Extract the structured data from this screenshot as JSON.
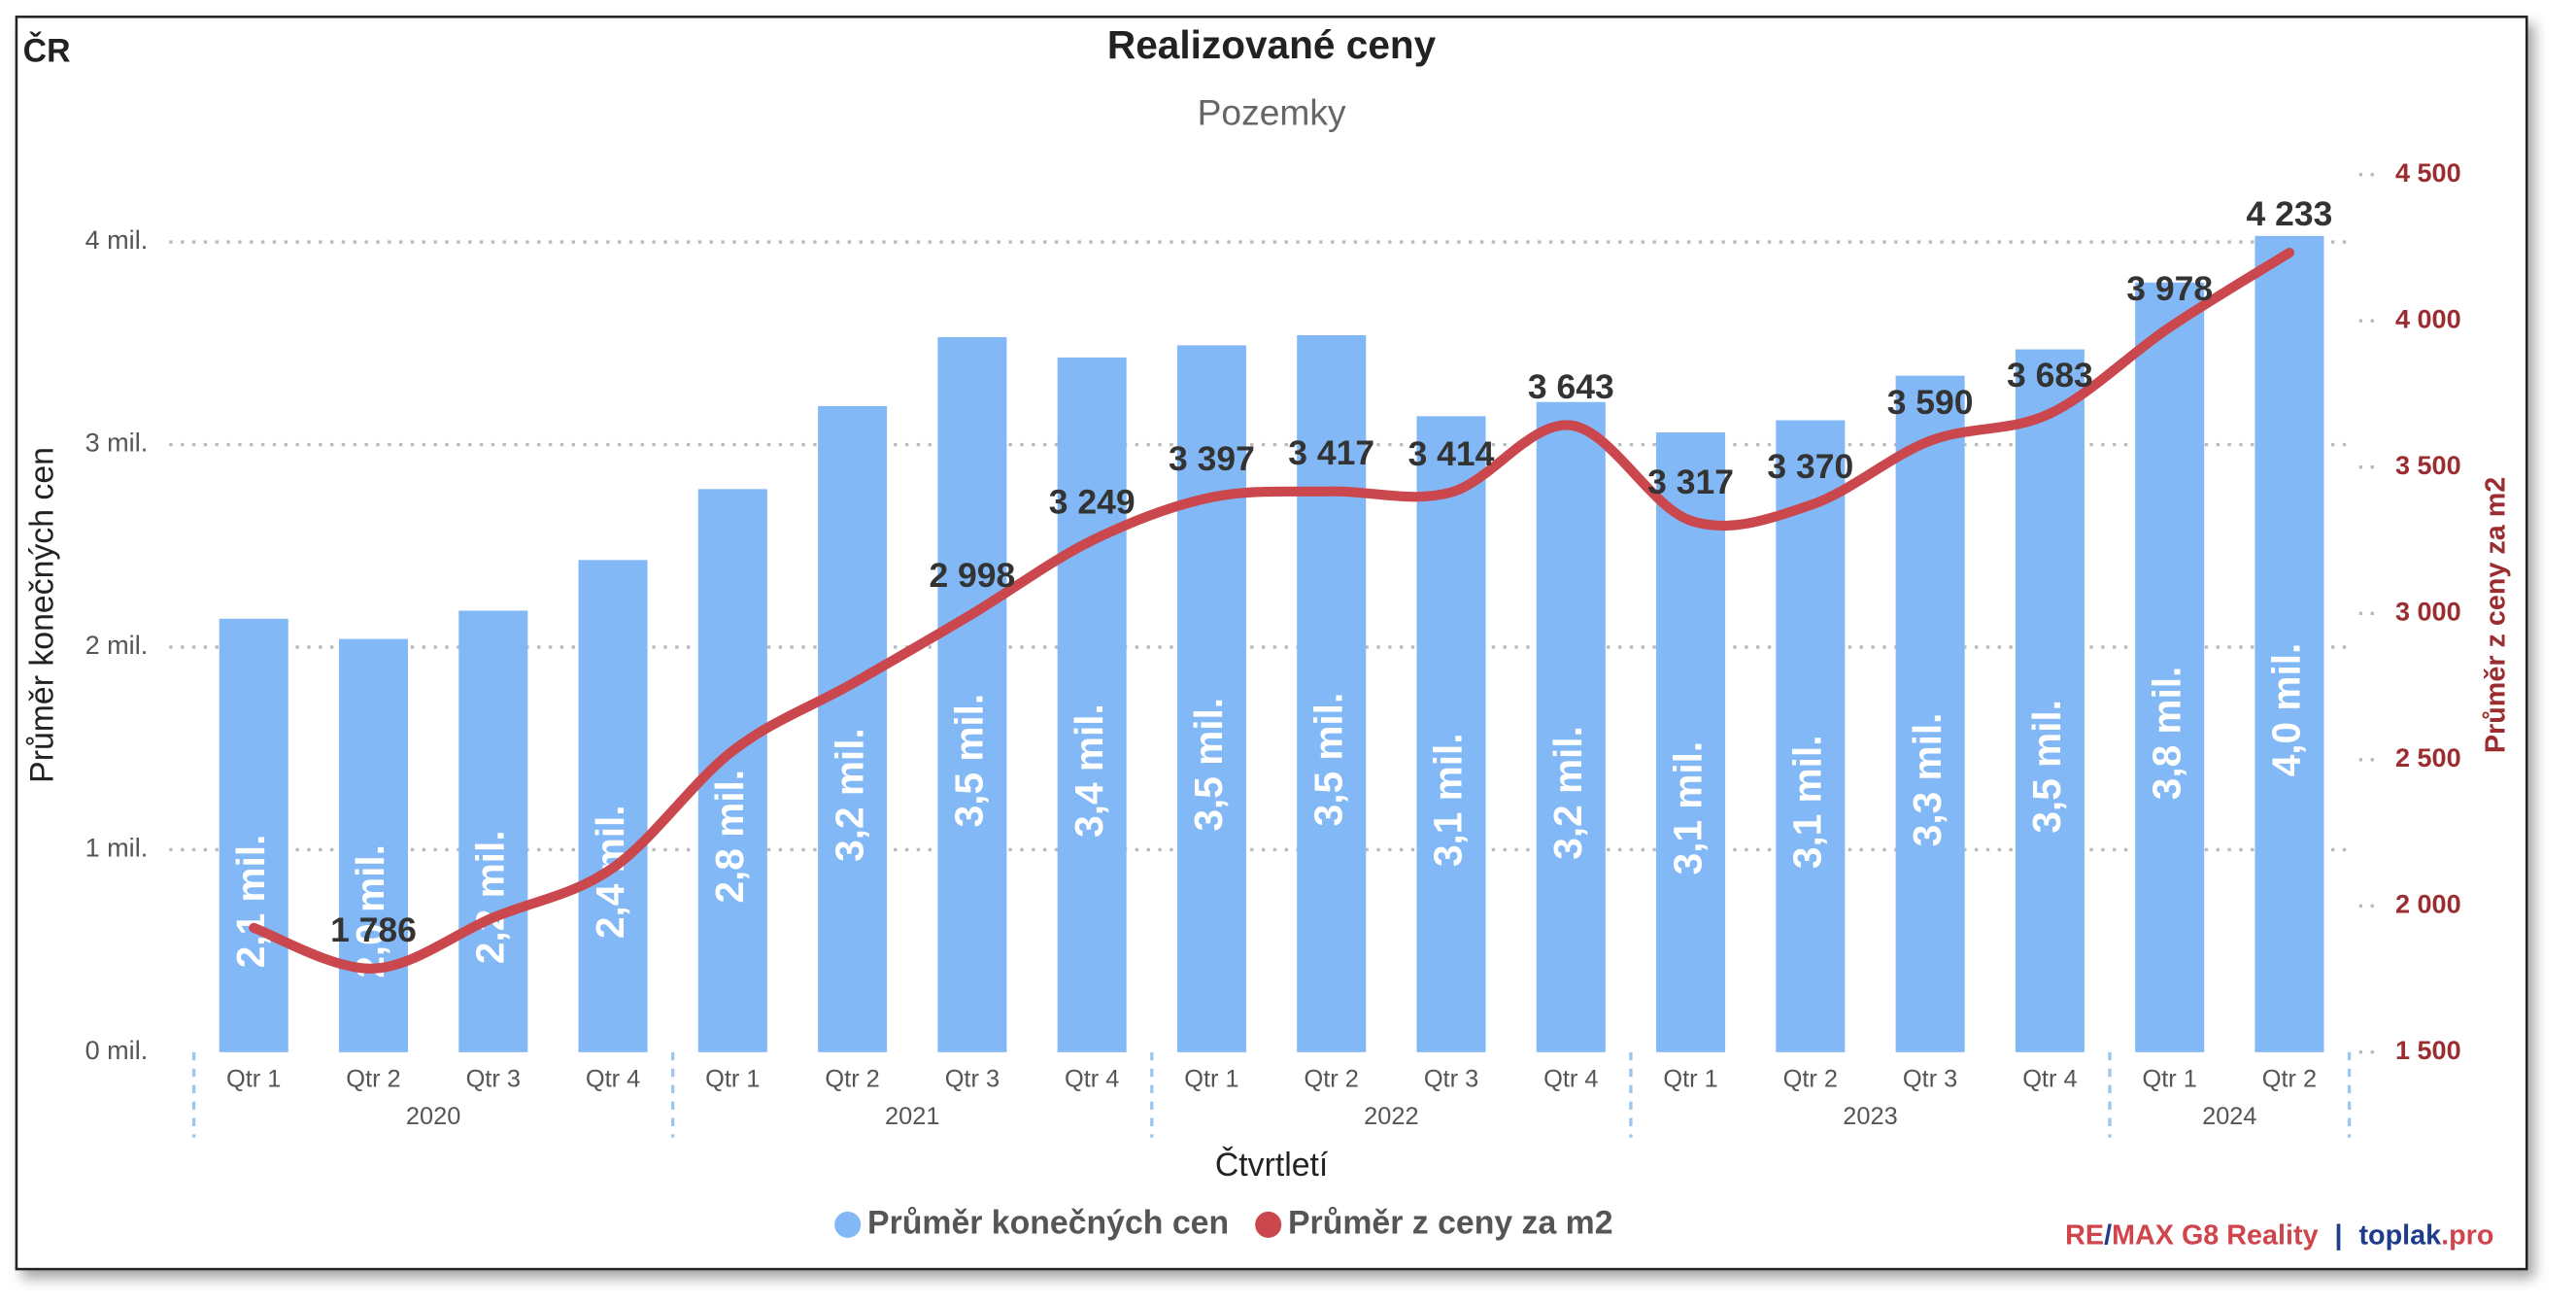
{
  "chart_data": {
    "type": "bar-line",
    "corner_label": "ČR",
    "title": "Realizované ceny",
    "subtitle": "Pozemky",
    "xlabel": "Čtvrtletí",
    "ylabel": "Průměr konečných cen",
    "y2label": "Průměr z ceny za m2",
    "categories": [
      "Qtr 1",
      "Qtr 2",
      "Qtr 3",
      "Qtr 4",
      "Qtr 1",
      "Qtr 2",
      "Qtr 3",
      "Qtr 4",
      "Qtr 1",
      "Qtr 2",
      "Qtr 3",
      "Qtr 4",
      "Qtr 1",
      "Qtr 2",
      "Qtr 3",
      "Qtr 4",
      "Qtr 1",
      "Qtr 2"
    ],
    "years": [
      "2020",
      "2021",
      "2022",
      "2023",
      "2024"
    ],
    "series": [
      {
        "name": "Průměr konečných cen",
        "type": "bar",
        "color": "#82b8f5",
        "values": [
          2.14,
          2.04,
          2.18,
          2.43,
          2.78,
          3.19,
          3.53,
          3.43,
          3.49,
          3.54,
          3.14,
          3.21,
          3.06,
          3.12,
          3.34,
          3.47,
          3.8,
          4.03
        ],
        "value_labels": [
          "2,1 mil.",
          "2,0 mil.",
          "2,2 mil.",
          "2,4 mil.",
          "2,8 mil.",
          "3,2 mil.",
          "3,5 mil.",
          "3,4 mil.",
          "3,5 mil.",
          "3,5 mil.",
          "3,1 mil.",
          "3,2 mil.",
          "3,1 mil.",
          "3,1 mil.",
          "3,3 mil.",
          "3,5 mil.",
          "3,8 mil.",
          "4,0 mil."
        ]
      },
      {
        "name": "Průměr z ceny za m2",
        "type": "line",
        "axis": "y2",
        "color": "#c9474d",
        "values": [
          1925,
          1786,
          1960,
          2130,
          2530,
          2760,
          2998,
          3249,
          3397,
          3417,
          3414,
          3643,
          3317,
          3370,
          3590,
          3683,
          3978,
          4233
        ],
        "value_labels": [
          null,
          "1 786",
          null,
          null,
          null,
          null,
          "2 998",
          "3 249",
          "3 397",
          "3 417",
          "3 414",
          "3 643",
          "3 317",
          "3 370",
          "3 590",
          "3 683",
          "3 978",
          "4 233"
        ]
      }
    ],
    "ylim": [
      0,
      4.333
    ],
    "yticks": [
      {
        "value": 0,
        "label": "0 mil."
      },
      {
        "value": 1,
        "label": "1 mil."
      },
      {
        "value": 2,
        "label": "2 mil."
      },
      {
        "value": 3,
        "label": "3 mil."
      },
      {
        "value": 4,
        "label": "4 mil."
      }
    ],
    "y2lim": [
      1500,
      4500
    ],
    "y2ticks": [
      {
        "value": 1500,
        "label": "1 500"
      },
      {
        "value": 2000,
        "label": "2 000"
      },
      {
        "value": 2500,
        "label": "2 500"
      },
      {
        "value": 3000,
        "label": "3 000"
      },
      {
        "value": 3500,
        "label": "3 500"
      },
      {
        "value": 4000,
        "label": "4 000"
      },
      {
        "value": 4500,
        "label": "4 500"
      }
    ],
    "y2color": "#9b2d30",
    "grid": true,
    "legend": "bottom",
    "credit": [
      {
        "text": "RE",
        "color": "#d0454b"
      },
      {
        "text": "/",
        "color": "#1f3b8c"
      },
      {
        "text": "MAX G8 Reality",
        "color": "#d0454b"
      },
      {
        "text": "|",
        "color": "#1f3b8c"
      },
      {
        "text": "toplak",
        "color": "#1f3b8c"
      },
      {
        "text": ".pro",
        "color": "#d0454b"
      }
    ]
  }
}
